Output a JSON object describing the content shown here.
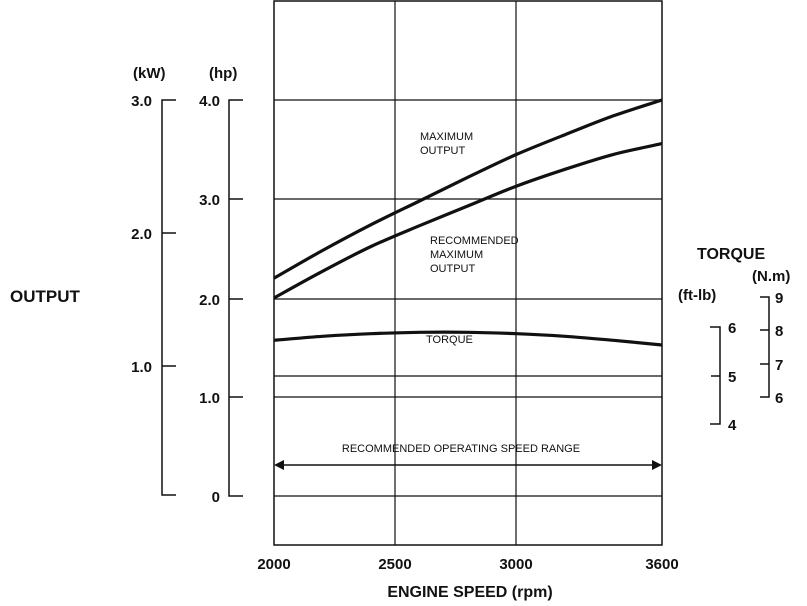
{
  "chart_data": {
    "type": "line",
    "xlabel": "ENGINE SPEED (rpm)",
    "x_ticks": [
      "2000",
      "2500",
      "3000",
      "3600"
    ],
    "xlim": [
      2000,
      3600
    ],
    "output_axis": {
      "label": "OUTPUT",
      "kw_unit": "(kW)",
      "kw_ticks": [
        "3.0",
        "2.0",
        "1.0"
      ],
      "hp_unit": "(hp)",
      "hp_ticks": [
        "4.0",
        "3.0",
        "2.0",
        "1.0",
        "0"
      ],
      "ylim_hp": [
        0,
        4
      ]
    },
    "torque_axis": {
      "label": "TORQUE",
      "nm_unit": "(N.m)",
      "nm_ticks": [
        "9",
        "8",
        "7",
        "6"
      ],
      "ftlb_unit": "(ft-lb)",
      "ftlb_ticks": [
        "6",
        "5",
        "4"
      ]
    },
    "series": [
      {
        "name": "MAXIMUM OUTPUT",
        "unit": "hp",
        "x": [
          2000,
          2200,
          2400,
          2600,
          2800,
          3000,
          3200,
          3400,
          3600
        ],
        "y": [
          2.2,
          2.48,
          2.74,
          2.98,
          3.22,
          3.45,
          3.65,
          3.84,
          4.0
        ]
      },
      {
        "name": "RECOMMENDED MAXIMUM OUTPUT",
        "unit": "hp",
        "x": [
          2000,
          2200,
          2400,
          2600,
          2800,
          3000,
          3200,
          3400,
          3600
        ],
        "y": [
          2.0,
          2.27,
          2.52,
          2.73,
          2.93,
          3.13,
          3.3,
          3.45,
          3.56
        ]
      },
      {
        "name": "TORQUE",
        "unit": "N.m",
        "x": [
          2000,
          2200,
          2400,
          2600,
          2800,
          3000,
          3200,
          3400,
          3600
        ],
        "y": [
          7.7,
          7.82,
          7.9,
          7.94,
          7.94,
          7.9,
          7.82,
          7.7,
          7.56
        ]
      }
    ],
    "annotations": [
      {
        "text": "RECOMMENDED OPERATING SPEED RANGE",
        "x_range": [
          2000,
          3600
        ]
      }
    ],
    "grid": true
  }
}
